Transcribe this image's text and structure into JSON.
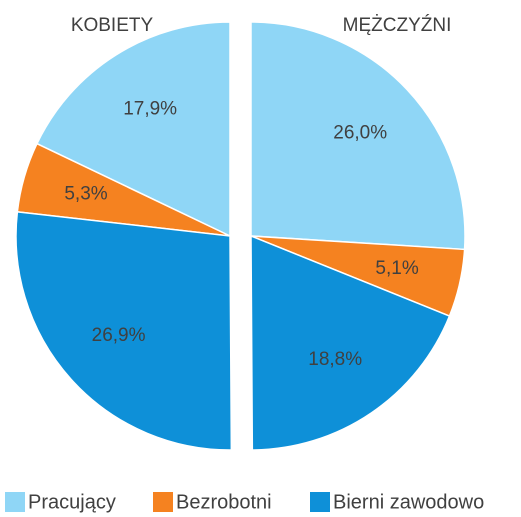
{
  "chart_data": {
    "type": "pie",
    "categories": [
      "Pracujący",
      "Bezrobotni",
      "Bierni zawodowo"
    ],
    "colors": [
      "#8fd6f6",
      "#f58220",
      "#0e90d8"
    ],
    "series": [
      {
        "name": "MĘŻCZYŹNI",
        "values": [
          26.0,
          5.1,
          18.8
        ],
        "value_labels": [
          "26,0%",
          "5,1%",
          "18,8%"
        ]
      },
      {
        "name": "KOBIETY",
        "values": [
          17.9,
          5.3,
          26.9
        ],
        "value_labels": [
          "17,9%",
          "5,3%",
          "26,9%"
        ]
      }
    ]
  }
}
